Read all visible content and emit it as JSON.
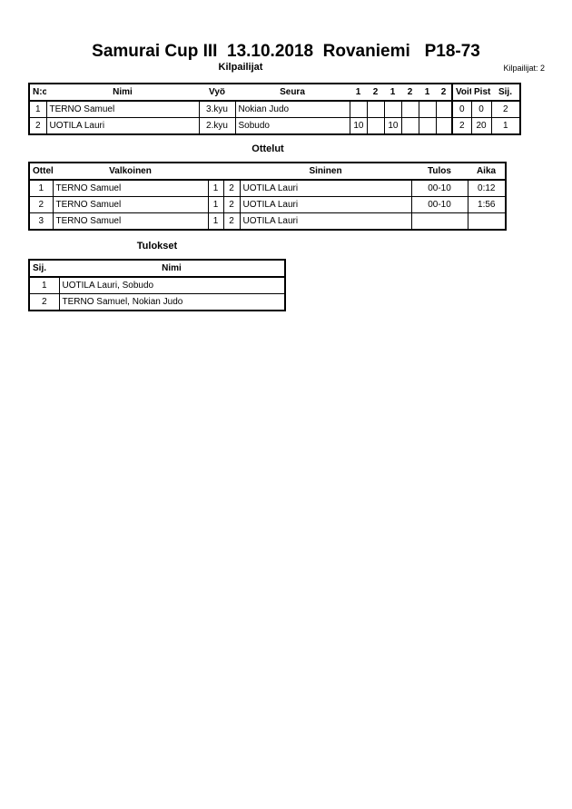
{
  "title": "Samurai Cup III  13.10.2018  Rovaniemi   P18-73",
  "competitors": {
    "heading": "Kilpailijat",
    "count_label": "Kilpailijat: 2",
    "columns": [
      "N:o",
      "Nimi",
      "Vyö",
      "Seura",
      "1",
      "2",
      "1",
      "2",
      "1",
      "2",
      "Voit.",
      "Pist.",
      "Sij."
    ],
    "rows": [
      [
        "1",
        "TERNO Samuel",
        "3.kyu",
        "Nokian Judo",
        "",
        "",
        "",
        "",
        "",
        "",
        "0",
        "0",
        "2"
      ],
      [
        "2",
        "UOTILA Lauri",
        "2.kyu",
        "Sobudo",
        "10",
        "",
        "10",
        "",
        "",
        "",
        "2",
        "20",
        "1"
      ]
    ]
  },
  "matches": {
    "heading": "Ottelut",
    "columns": [
      "Ottelu",
      "Valkoinen",
      "",
      "",
      "Sininen",
      "Tulos",
      "Aika"
    ],
    "rows": [
      [
        "1",
        "TERNO Samuel",
        "1",
        "2",
        "UOTILA Lauri",
        "00-10",
        "0:12"
      ],
      [
        "2",
        "TERNO Samuel",
        "1",
        "2",
        "UOTILA Lauri",
        "00-10",
        "1:56"
      ],
      [
        "3",
        "TERNO Samuel",
        "1",
        "2",
        "UOTILA Lauri",
        "",
        ""
      ]
    ]
  },
  "results": {
    "heading": "Tulokset",
    "columns": [
      "Sij.",
      "Nimi"
    ],
    "rows": [
      [
        "1",
        "UOTILA Lauri, Sobudo"
      ],
      [
        "2",
        "TERNO Samuel, Nokian Judo"
      ]
    ]
  }
}
